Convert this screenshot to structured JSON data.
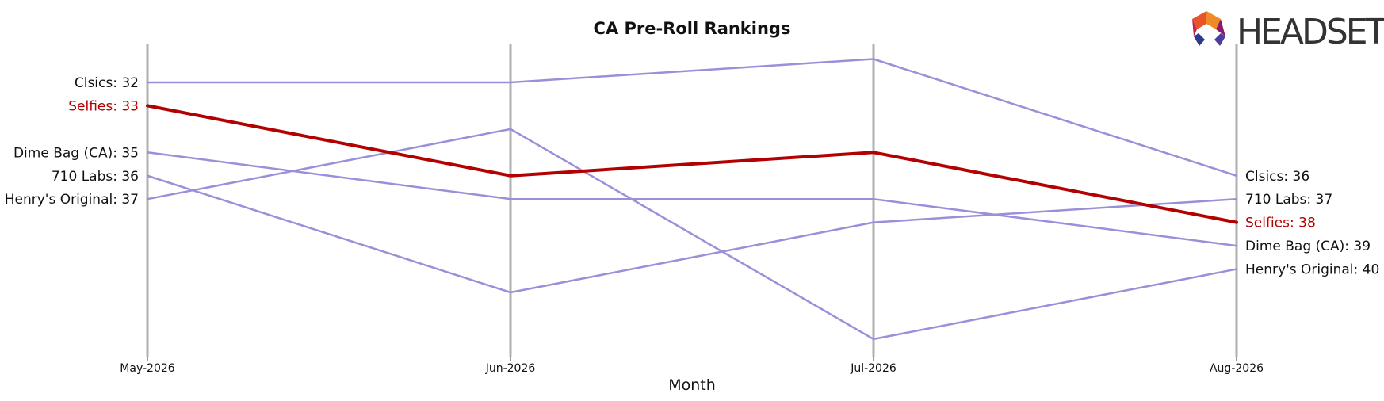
{
  "chart_data": {
    "type": "line",
    "title": "CA Pre-Roll Rankings",
    "xlabel": "Month",
    "ylabel": "",
    "categories": [
      "May-2026",
      "Jun-2026",
      "Jul-2026",
      "Aug-2026"
    ],
    "y_inverted": true,
    "ylim": [
      31,
      44
    ],
    "grid": false,
    "highlight_color": "#b30000",
    "series_color": "#9b8fd9",
    "label_color": "#111111",
    "axis_color": "#b0b0b0",
    "series": [
      {
        "name": "Clsics",
        "values": [
          32,
          32,
          31,
          36
        ],
        "highlight": false
      },
      {
        "name": "Selfies",
        "values": [
          33,
          36,
          35,
          38
        ],
        "highlight": true
      },
      {
        "name": "Dime Bag (CA)",
        "values": [
          35,
          37,
          37,
          39
        ],
        "highlight": false
      },
      {
        "name": "710 Labs",
        "values": [
          36,
          41,
          38,
          37
        ],
        "highlight": false
      },
      {
        "name": "Henry's Original",
        "values": [
          37,
          34,
          43,
          40
        ],
        "highlight": false
      }
    ]
  },
  "logo": {
    "text": "HEADSET",
    "colors": [
      "#e8542a",
      "#f08a24",
      "#c81e4f",
      "#8b1a6b",
      "#2d3a8c",
      "#4a3fa0"
    ]
  }
}
